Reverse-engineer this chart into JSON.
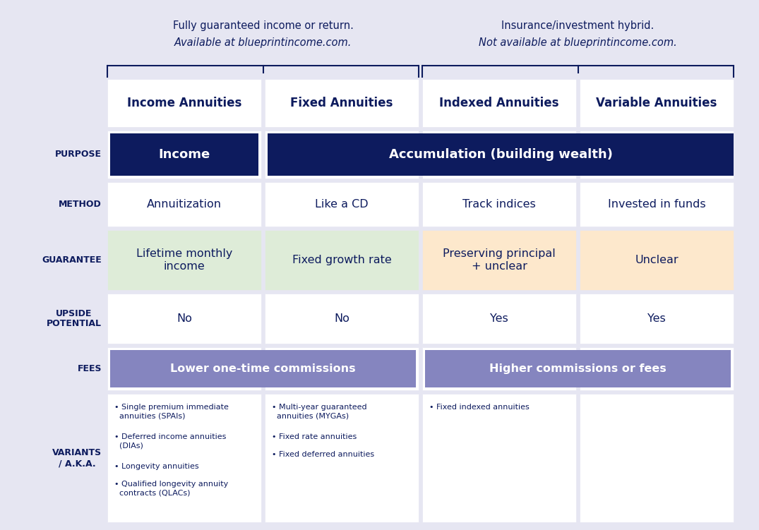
{
  "bg_color": "#e6e6f2",
  "dark_navy": "#0d1b5e",
  "white": "#ffffff",
  "light_green": "#deecd8",
  "light_orange": "#fde8cc",
  "purple_btn": "#8585bf",
  "top_label1": "Fully guaranteed income or return.",
  "top_label1_italic": "Available at blueprintincome.com.",
  "top_label2": "Insurance/investment hybrid.",
  "top_label2_italic": "Not available at blueprintincome.com.",
  "col_headers": [
    "Income Annuities",
    "Fixed Annuities",
    "Indexed Annuities",
    "Variable Annuities"
  ],
  "purpose_income": "Income",
  "purpose_accum": "Accumulation (building wealth)",
  "method_row": [
    "Annuitization",
    "Like a CD",
    "Track indices",
    "Invested in funds"
  ],
  "guarantee_row": [
    "Lifetime monthly\nincome",
    "Fixed growth rate",
    "Preserving principal\n+ unclear",
    "Unclear"
  ],
  "guarantee_colors": [
    "#deecd8",
    "#deecd8",
    "#fde8cc",
    "#fde8cc"
  ],
  "upside_row": [
    "No",
    "No",
    "Yes",
    "Yes"
  ],
  "fees_left": "Lower one-time commissions",
  "fees_right": "Higher commissions or fees",
  "variants_col0": [
    "• Single premium immediate\n  annuities (SPAIs)",
    "• Deferred income annuities\n  (DIAs)",
    "• Longevity annuities",
    "• Qualified longevity annuity\n  contracts (QLACs)"
  ],
  "variants_col1": [
    "• Multi-year guaranteed\n  annuities (MYGAs)",
    "• Fixed rate annuities",
    "• Fixed deferred annuities"
  ],
  "variants_col2": [
    "• Fixed indexed annuities"
  ],
  "variants_col3": []
}
